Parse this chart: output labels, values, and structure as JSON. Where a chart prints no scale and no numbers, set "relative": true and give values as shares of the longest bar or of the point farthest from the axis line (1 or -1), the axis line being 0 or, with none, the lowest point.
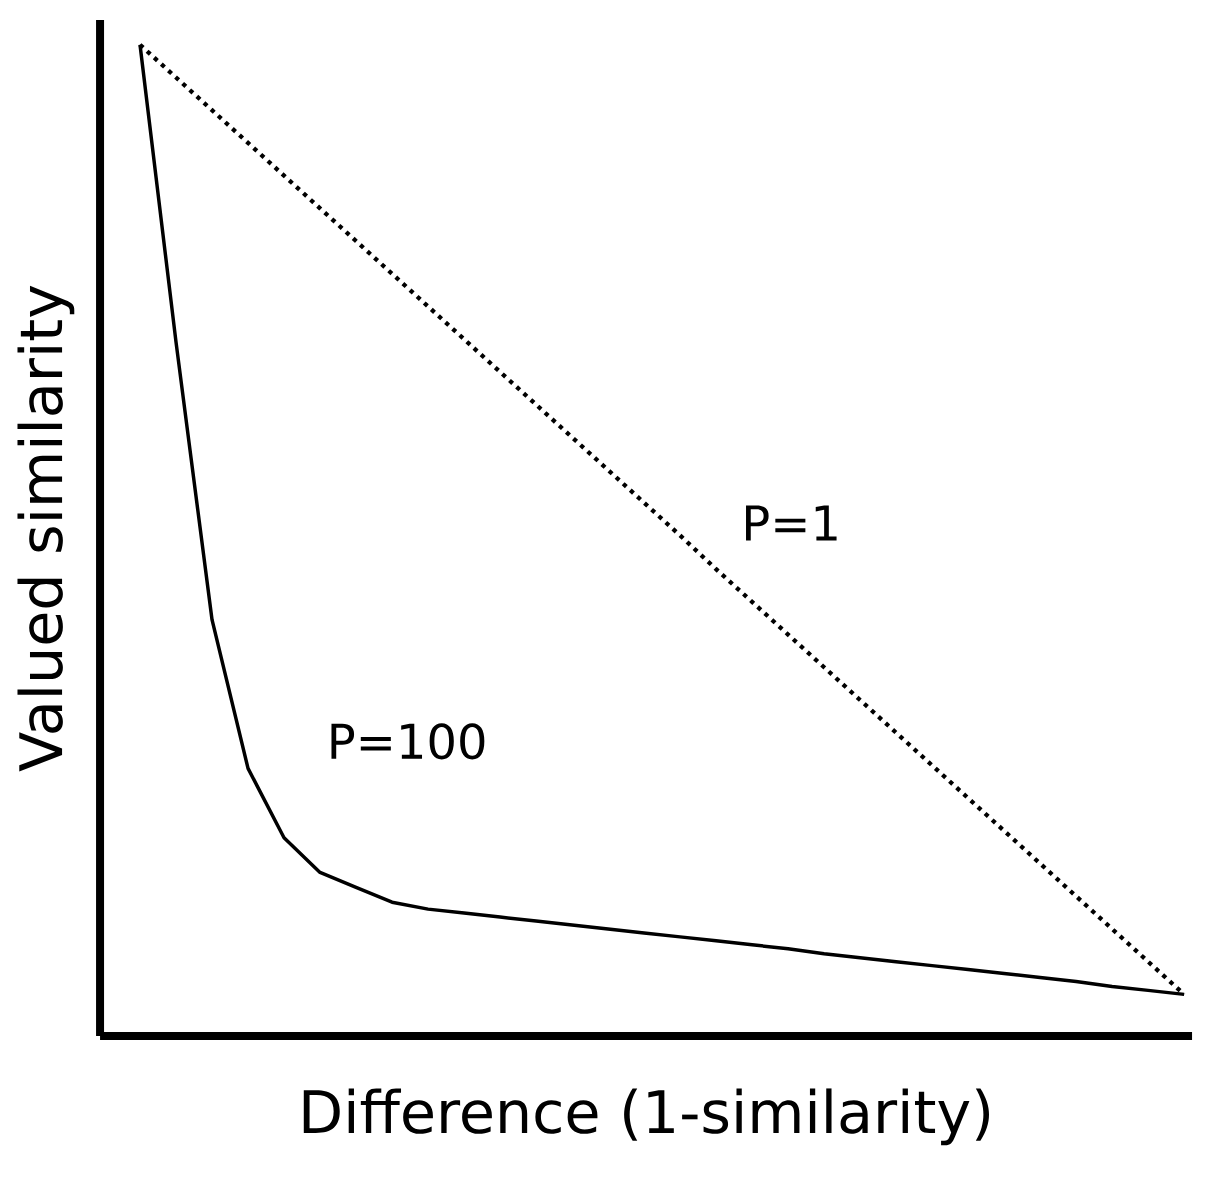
{
  "chart_data": {
    "type": "line",
    "relative": true,
    "xlabel": "Difference (1-similarity)",
    "ylabel": "Valued similarity",
    "tick_labels": false,
    "legend": false,
    "marker": "none",
    "categories": [
      null,
      null,
      null,
      null,
      null,
      null,
      null,
      null,
      null,
      null,
      null,
      null,
      null,
      null,
      null,
      null,
      null,
      null,
      null,
      null,
      null,
      null,
      null,
      null,
      null,
      null,
      null,
      null,
      null,
      null
    ],
    "series": [
      {
        "name": "P=1",
        "color": "#000000",
        "line_style": "dotted",
        "values": [
          1.0,
          0.967,
          0.934,
          0.901,
          0.868,
          0.835,
          0.802,
          0.769,
          0.736,
          0.703,
          0.67,
          0.637,
          0.604,
          0.571,
          0.538,
          0.505,
          0.471,
          0.438,
          0.405,
          0.372,
          0.339,
          0.306,
          0.273,
          0.24,
          0.207,
          0.174,
          0.141,
          0.108,
          0.075,
          0.042
        ]
      },
      {
        "name": "P=100",
        "color": "#000000",
        "line_style": "solid",
        "values": [
          1.0,
          0.7,
          0.42,
          0.27,
          0.2,
          0.165,
          0.15,
          0.135,
          0.128,
          0.124,
          0.12,
          0.116,
          0.112,
          0.108,
          0.104,
          0.1,
          0.096,
          0.092,
          0.088,
          0.083,
          0.079,
          0.075,
          0.071,
          0.067,
          0.063,
          0.059,
          0.055,
          0.05,
          0.046,
          0.042
        ]
      }
    ]
  }
}
